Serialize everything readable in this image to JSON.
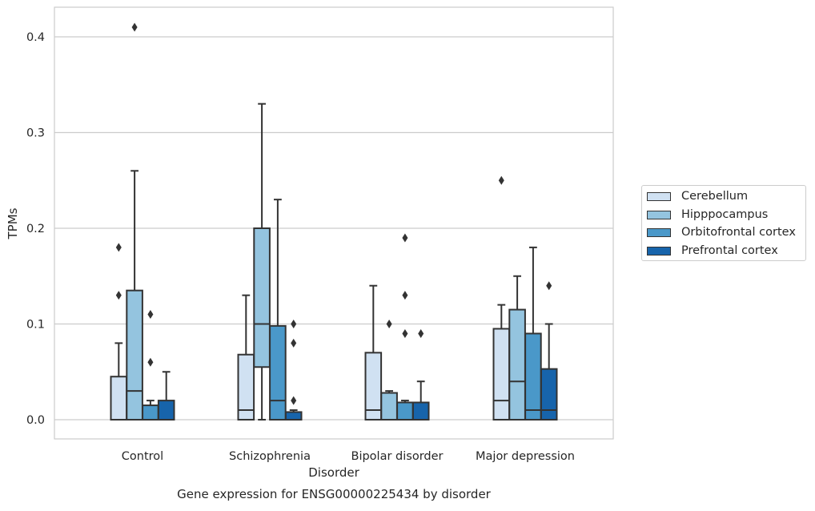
{
  "chart_data": {
    "type": "box",
    "title": "Gene expression for ENSG00000225434 by disorder",
    "xlabel": "Disorder",
    "ylabel": "TPMs",
    "ylim": [
      -0.02,
      0.43
    ],
    "yticks": [
      0.0,
      0.1,
      0.2,
      0.3,
      0.4
    ],
    "ytick_labels": [
      "0.0",
      "0.1",
      "0.2",
      "0.3",
      "0.4"
    ],
    "grid": "horizontal",
    "legend_position": "right",
    "categories": [
      "Control",
      "Schizophrenia",
      "Bipolar disorder",
      "Major depression"
    ],
    "series": [
      {
        "name": "Cerebellum",
        "color": "#d0e1f2",
        "boxes": [
          {
            "whislo": 0.0,
            "q1": 0.0,
            "med": 0.0,
            "q3": 0.045,
            "whishi": 0.08,
            "fliers": [
              0.13,
              0.18
            ]
          },
          {
            "whislo": 0.0,
            "q1": 0.0,
            "med": 0.01,
            "q3": 0.068,
            "whishi": 0.13,
            "fliers": []
          },
          {
            "whislo": 0.0,
            "q1": 0.0,
            "med": 0.01,
            "q3": 0.07,
            "whishi": 0.14,
            "fliers": []
          },
          {
            "whislo": 0.0,
            "q1": 0.0,
            "med": 0.02,
            "q3": 0.095,
            "whishi": 0.12,
            "fliers": [
              0.25
            ]
          }
        ]
      },
      {
        "name": "Hipppocampus",
        "color": "#94c4df",
        "boxes": [
          {
            "whislo": 0.0,
            "q1": 0.0,
            "med": 0.03,
            "q3": 0.135,
            "whishi": 0.26,
            "fliers": [
              0.41
            ]
          },
          {
            "whislo": 0.0,
            "q1": 0.055,
            "med": 0.1,
            "q3": 0.2,
            "whishi": 0.33,
            "fliers": []
          },
          {
            "whislo": 0.0,
            "q1": 0.0,
            "med": 0.0,
            "q3": 0.028,
            "whishi": 0.03,
            "fliers": [
              0.1
            ]
          },
          {
            "whislo": 0.0,
            "q1": 0.0,
            "med": 0.04,
            "q3": 0.115,
            "whishi": 0.15,
            "fliers": []
          }
        ]
      },
      {
        "name": "Orbitofrontal cortex",
        "color": "#4a98c9",
        "boxes": [
          {
            "whislo": 0.0,
            "q1": 0.0,
            "med": 0.0,
            "q3": 0.015,
            "whishi": 0.02,
            "fliers": [
              0.06,
              0.11
            ]
          },
          {
            "whislo": 0.0,
            "q1": 0.0,
            "med": 0.02,
            "q3": 0.098,
            "whishi": 0.23,
            "fliers": []
          },
          {
            "whislo": 0.0,
            "q1": 0.0,
            "med": 0.0,
            "q3": 0.018,
            "whishi": 0.02,
            "fliers": [
              0.09,
              0.13,
              0.19
            ]
          },
          {
            "whislo": 0.0,
            "q1": 0.0,
            "med": 0.01,
            "q3": 0.09,
            "whishi": 0.18,
            "fliers": []
          }
        ]
      },
      {
        "name": "Prefrontal cortex",
        "color": "#1764ab",
        "boxes": [
          {
            "whislo": 0.0,
            "q1": 0.0,
            "med": 0.0,
            "q3": 0.02,
            "whishi": 0.05,
            "fliers": []
          },
          {
            "whislo": 0.0,
            "q1": 0.0,
            "med": 0.0,
            "q3": 0.008,
            "whishi": 0.01,
            "fliers": [
              0.02,
              0.08,
              0.1
            ]
          },
          {
            "whislo": 0.0,
            "q1": 0.0,
            "med": 0.0,
            "q3": 0.018,
            "whishi": 0.04,
            "fliers": [
              0.09
            ]
          },
          {
            "whislo": 0.0,
            "q1": 0.0,
            "med": 0.01,
            "q3": 0.053,
            "whishi": 0.1,
            "fliers": [
              0.14
            ]
          }
        ]
      }
    ]
  }
}
